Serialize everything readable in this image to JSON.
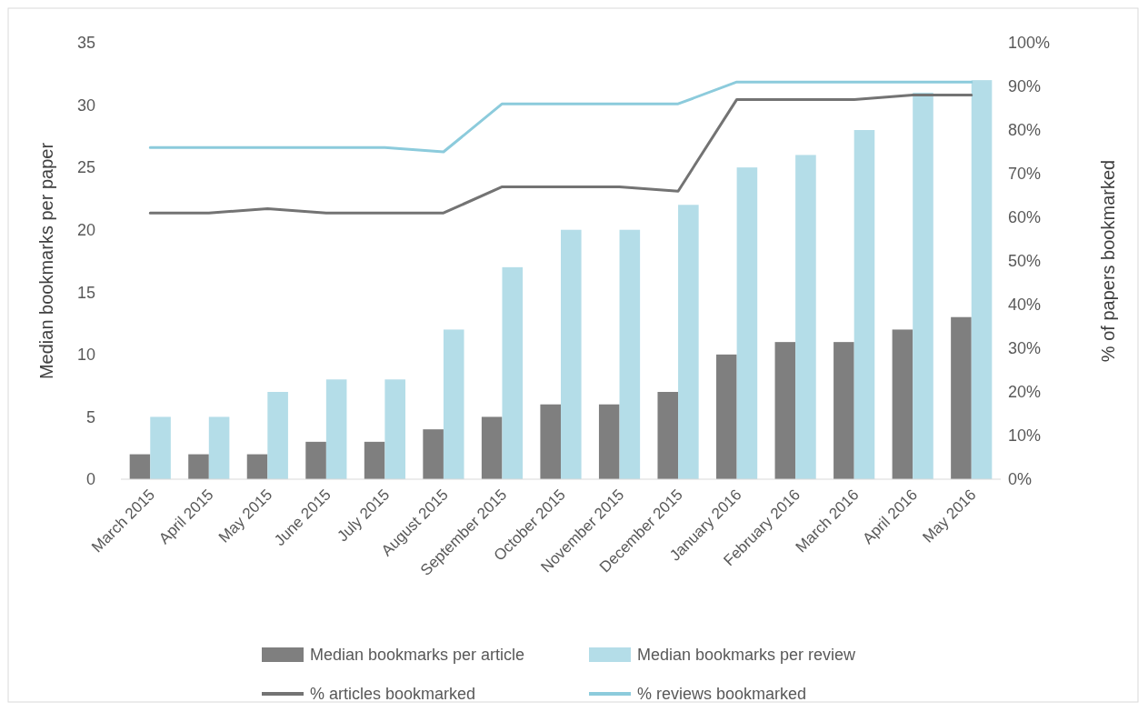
{
  "chart_data": {
    "type": "bar",
    "categories": [
      "March 2015",
      "April 2015",
      "May 2015",
      "June 2015",
      "July 2015",
      "August 2015",
      "September 2015",
      "October 2015",
      "November 2015",
      "December 2015",
      "January 2016",
      "February 2016",
      "March 2016",
      "April 2016",
      "May 2016"
    ],
    "ylabel": "Median bookmarks per paper",
    "y2label": "% of papers bookmarked",
    "ylim": [
      0,
      35
    ],
    "yticks": [
      0,
      5,
      10,
      15,
      20,
      25,
      30,
      35
    ],
    "y2lim": [
      0,
      100
    ],
    "y2ticks": [
      {
        "value": 0,
        "label": "0%"
      },
      {
        "value": 10,
        "label": "10%"
      },
      {
        "value": 20,
        "label": "20%"
      },
      {
        "value": 30,
        "label": "30%"
      },
      {
        "value": 40,
        "label": "40%"
      },
      {
        "value": 50,
        "label": "50%"
      },
      {
        "value": 60,
        "label": "60%"
      },
      {
        "value": 70,
        "label": "70%"
      },
      {
        "value": 80,
        "label": "80%"
      },
      {
        "value": 90,
        "label": "90%"
      },
      {
        "value": 100,
        "label": "100%"
      }
    ],
    "grid": false,
    "legend": "bottom",
    "series": [
      {
        "name": "Median bookmarks per article",
        "color": "#7f7f7f",
        "values": [
          2,
          2,
          2,
          3,
          3,
          4,
          5,
          6,
          6,
          7,
          10,
          11,
          11,
          12,
          13
        ]
      },
      {
        "name": "Median bookmarks per review",
        "color": "#b4dde8",
        "values": [
          5,
          5,
          7,
          8,
          8,
          12,
          17,
          20,
          20,
          22,
          25,
          26,
          28,
          31,
          32
        ]
      },
      {
        "name": "% articles bookmarked",
        "type": "line",
        "axis": "y2",
        "color": "#737373",
        "values": [
          61,
          61,
          62,
          61,
          61,
          61,
          67,
          67,
          67,
          66,
          87,
          87,
          87,
          88,
          88
        ]
      },
      {
        "name": "% reviews bookmarked",
        "type": "line",
        "axis": "y2",
        "color": "#8ccbdc",
        "values": [
          76,
          76,
          76,
          76,
          76,
          75,
          86,
          86,
          86,
          86,
          91,
          91,
          91,
          91,
          91
        ]
      }
    ]
  }
}
